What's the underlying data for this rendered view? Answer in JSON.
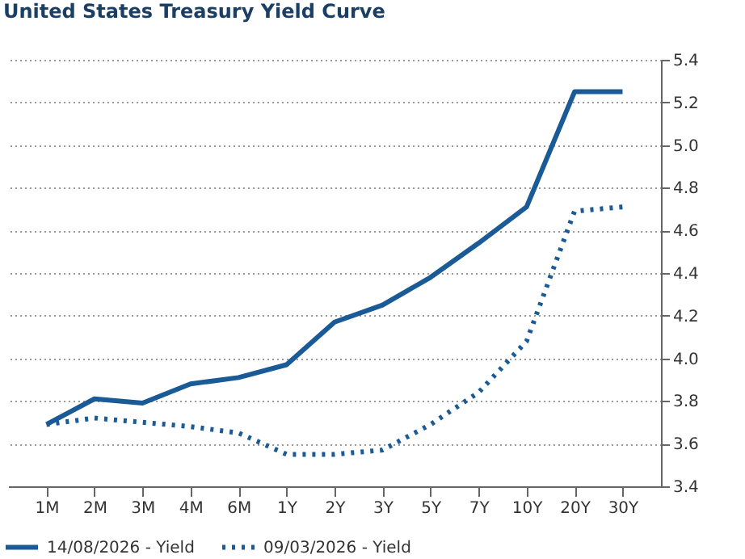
{
  "chart_data": {
    "type": "line",
    "title": "United States Treasury Yield Curve",
    "categories": [
      "1M",
      "2M",
      "3M",
      "4M",
      "6M",
      "1Y",
      "2Y",
      "3Y",
      "5Y",
      "7Y",
      "10Y",
      "20Y",
      "30Y"
    ],
    "ylim": [
      3.4,
      5.4
    ],
    "yticks": [
      3.4,
      3.6,
      3.8,
      {
        "value": 4,
        "label": "4.0"
      },
      4.2,
      4.4,
      4.6,
      4.8,
      {
        "value": 5,
        "label": "5.0"
      },
      5.2,
      5.4
    ],
    "series": [
      {
        "name": "14/08/2026 - Yield",
        "color": "#1a5a96",
        "line_style": "solid",
        "values": [
          3.69,
          3.81,
          3.79,
          3.88,
          3.91,
          3.97,
          4.17,
          4.25,
          4.38,
          4.54,
          4.71,
          5.25,
          5.25
        ]
      },
      {
        "name": "09/03/2026 - Yield",
        "color": "#1a5a96",
        "line_style": "dotted",
        "values": [
          3.69,
          3.72,
          3.7,
          3.68,
          3.65,
          3.55,
          3.55,
          3.57,
          3.69,
          3.84,
          4.08,
          4.69,
          4.71
        ]
      }
    ],
    "grid": "y",
    "legend": "bottom left",
    "marker": "none"
  }
}
